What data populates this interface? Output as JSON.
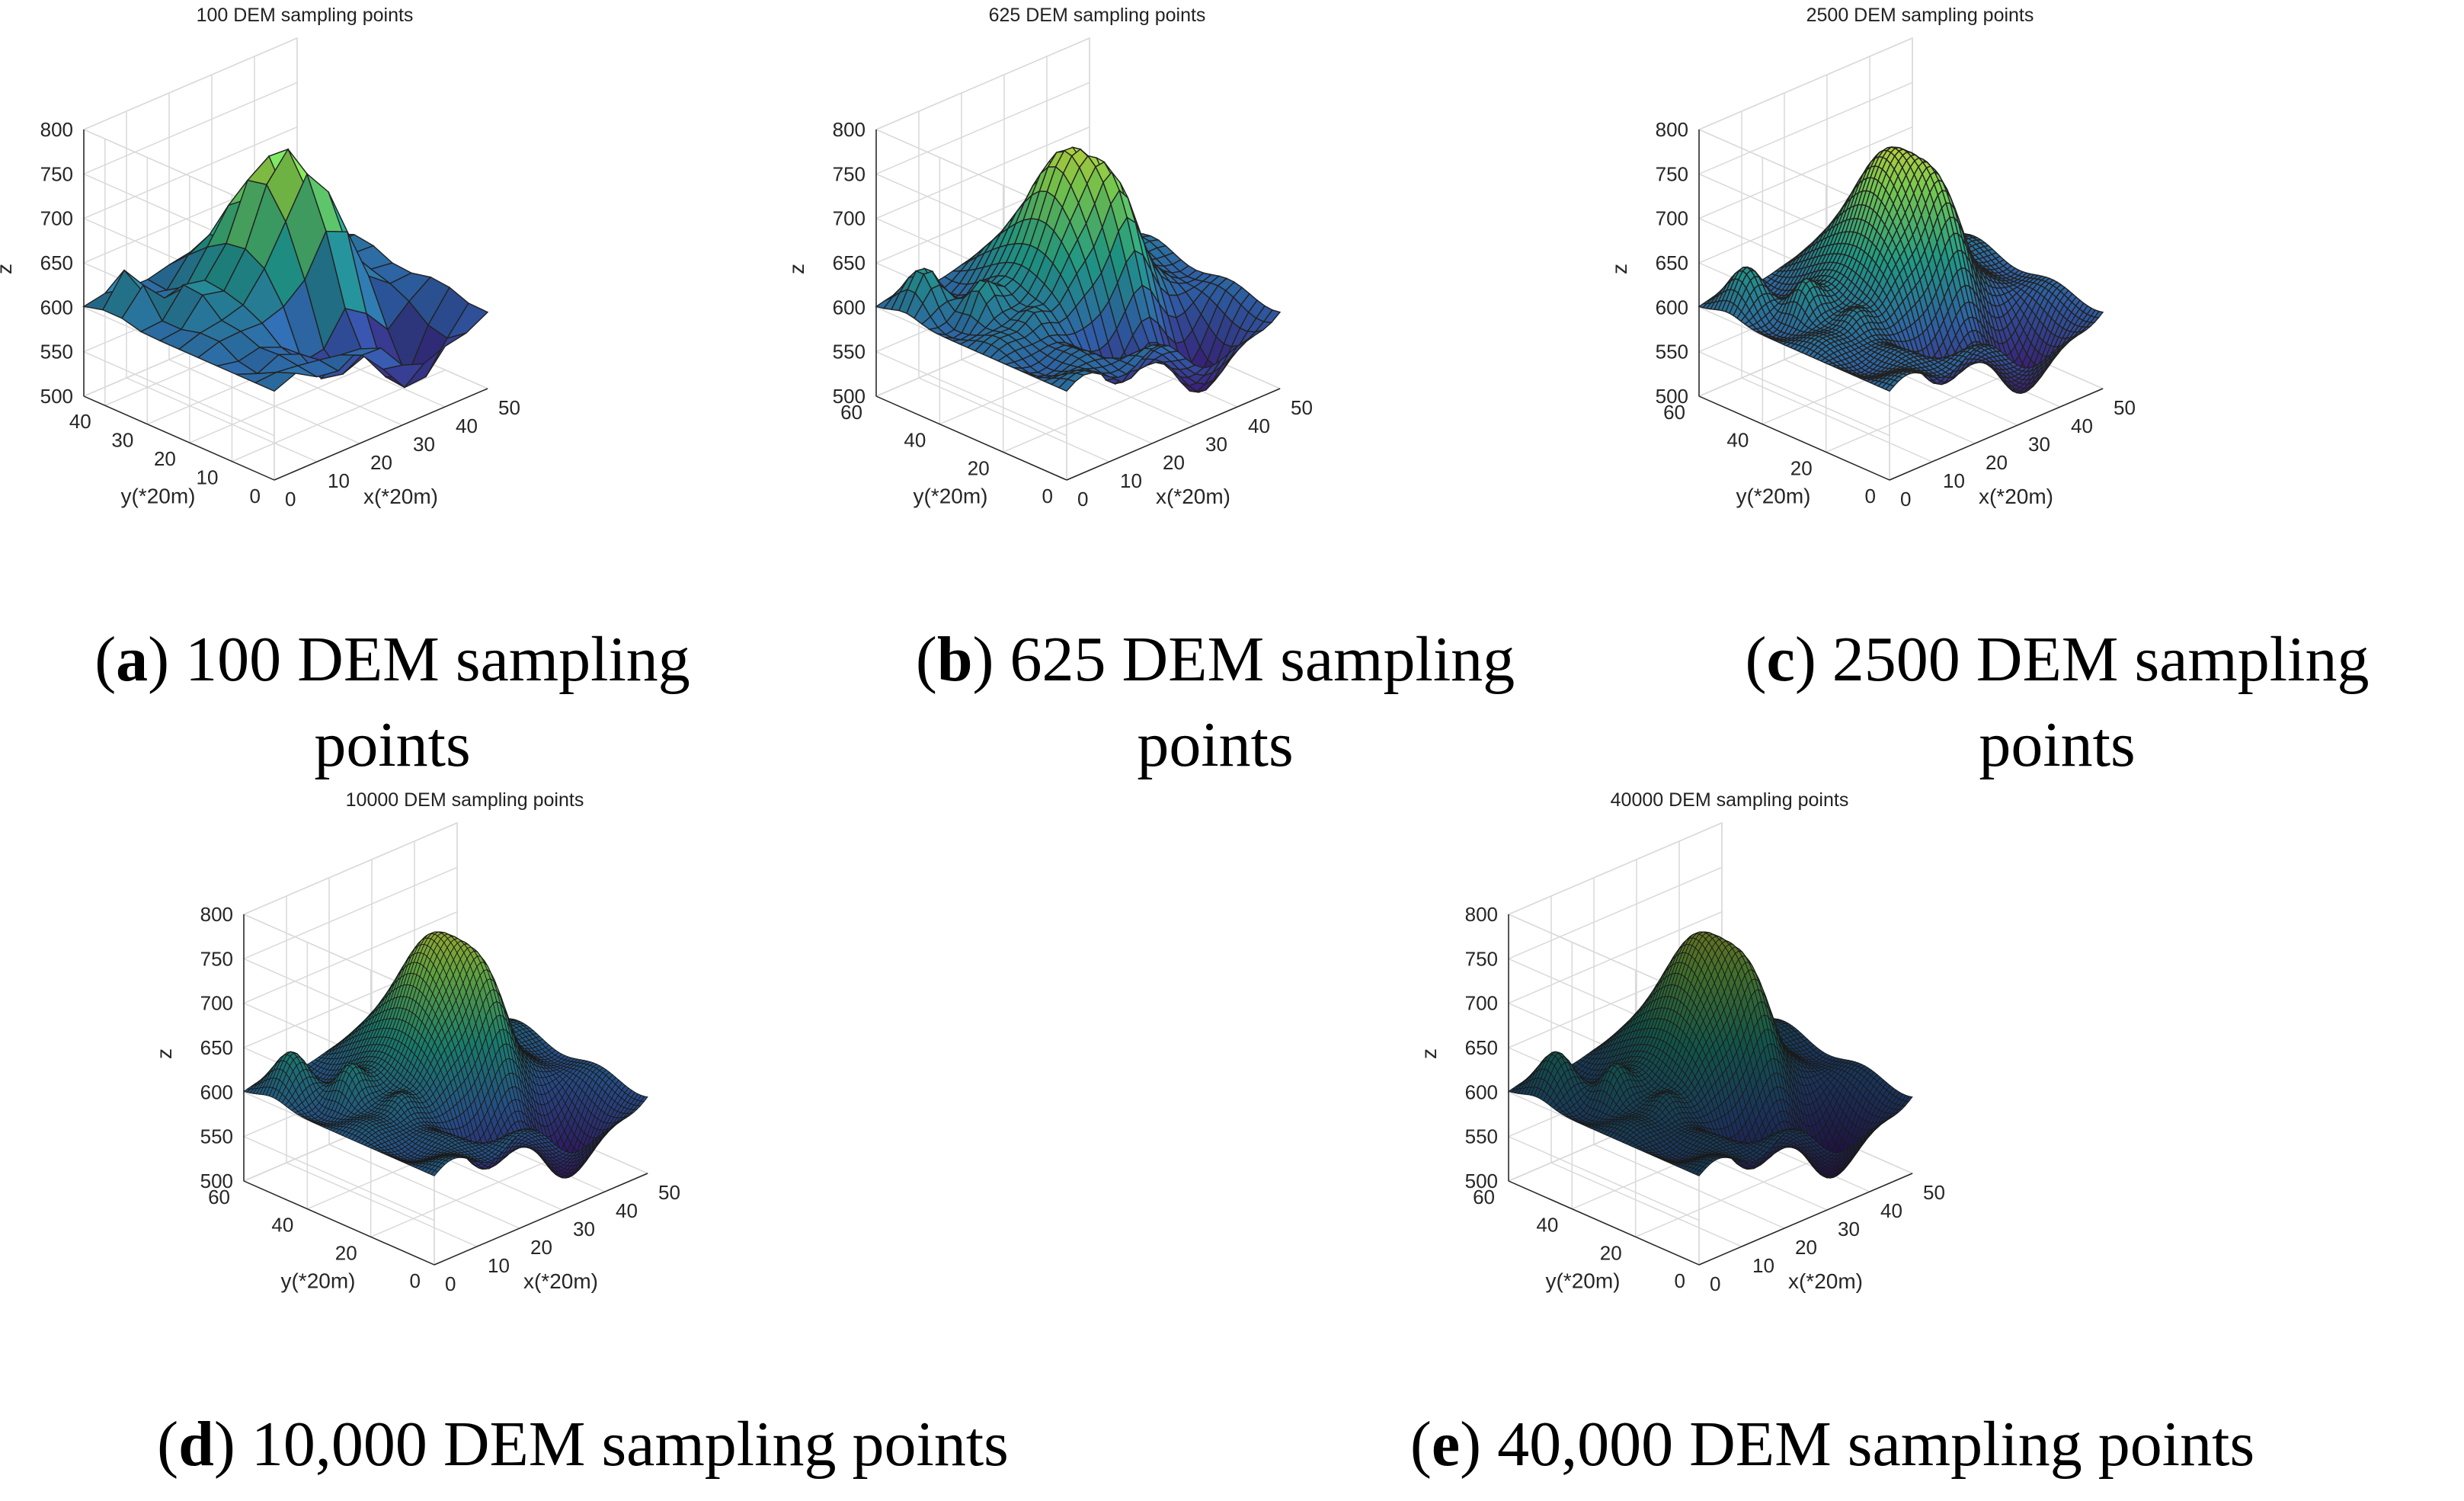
{
  "figure": {
    "panels": [
      {
        "letter": "a",
        "caption_text": " 100 DEM sampling points",
        "caption_line1": " 100 DEM sampling",
        "caption_line2": "points"
      },
      {
        "letter": "b",
        "caption_text": " 625 DEM sampling points",
        "caption_line1": " 625 DEM sampling",
        "caption_line2": "points"
      },
      {
        "letter": "c",
        "caption_text": " 2500 DEM sampling points",
        "caption_line1": " 2500 DEM sampling",
        "caption_line2": "points"
      },
      {
        "letter": "d",
        "caption_text": " 10,000 DEM sampling points"
      },
      {
        "letter": "e",
        "caption_text": " 40,000 DEM sampling points"
      }
    ],
    "colors": {
      "low": "#3b1f7a",
      "mid": "#1f9e89",
      "high": "#f2d52a",
      "grid": "#d9d9d9",
      "axis": "#262626"
    }
  },
  "chart_data": [
    {
      "type": "surface",
      "title": "100 DEM sampling points",
      "xlabel": "x(*20m)",
      "ylabel": "y(*20m)",
      "zlabel": "z",
      "grid_n": 10,
      "xlim": [
        0,
        50
      ],
      "ylim": [
        0,
        45
      ],
      "zlim": [
        500,
        800
      ],
      "xticks": [
        0,
        10,
        20,
        30,
        40,
        50
      ],
      "yticks": [
        0,
        10,
        20,
        30,
        40
      ],
      "zticks": [
        500,
        550,
        600,
        650,
        700,
        750,
        800
      ],
      "z_range_shown": [
        510,
        790
      ]
    },
    {
      "type": "surface",
      "title": "625 DEM sampling points",
      "xlabel": "x(*20m)",
      "ylabel": "y(*20m)",
      "zlabel": "z",
      "grid_n": 25,
      "xlim": [
        0,
        50
      ],
      "ylim": [
        0,
        60
      ],
      "zlim": [
        500,
        800
      ],
      "xticks": [
        0,
        10,
        20,
        30,
        40,
        50
      ],
      "yticks": [
        0,
        20,
        40,
        60
      ],
      "zticks": [
        500,
        550,
        600,
        650,
        700,
        750,
        800
      ],
      "z_range_shown": [
        505,
        810
      ]
    },
    {
      "type": "surface",
      "title": "2500 DEM sampling points",
      "xlabel": "x(*20m)",
      "ylabel": "y(*20m)",
      "zlabel": "z",
      "grid_n": 50,
      "xlim": [
        0,
        50
      ],
      "ylim": [
        0,
        60
      ],
      "zlim": [
        500,
        800
      ],
      "xticks": [
        0,
        10,
        20,
        30,
        40,
        50
      ],
      "yticks": [
        0,
        20,
        40,
        60
      ],
      "zticks": [
        500,
        550,
        600,
        650,
        700,
        750,
        800
      ],
      "z_range_shown": [
        505,
        815
      ]
    },
    {
      "type": "surface",
      "title": "10000 DEM sampling points",
      "xlabel": "x(*20m)",
      "ylabel": "y(*20m)",
      "zlabel": "z",
      "grid_n": 100,
      "xlim": [
        0,
        50
      ],
      "ylim": [
        0,
        60
      ],
      "zlim": [
        500,
        800
      ],
      "xticks": [
        0,
        10,
        20,
        30,
        40,
        50
      ],
      "yticks": [
        0,
        20,
        40,
        60
      ],
      "zticks": [
        500,
        550,
        600,
        650,
        700,
        750,
        800
      ],
      "z_range_shown": [
        505,
        820
      ]
    },
    {
      "type": "surface",
      "title": "40000 DEM sampling points",
      "xlabel": "x(*20m)",
      "ylabel": "y(*20m)",
      "zlabel": "z",
      "grid_n": 200,
      "xlim": [
        0,
        50
      ],
      "ylim": [
        0,
        60
      ],
      "zlim": [
        500,
        800
      ],
      "xticks": [
        0,
        10,
        20,
        30,
        40,
        50
      ],
      "yticks": [
        0,
        20,
        40,
        60
      ],
      "zticks": [
        500,
        550,
        600,
        650,
        700,
        750,
        800
      ],
      "z_range_shown": [
        505,
        820
      ]
    }
  ]
}
